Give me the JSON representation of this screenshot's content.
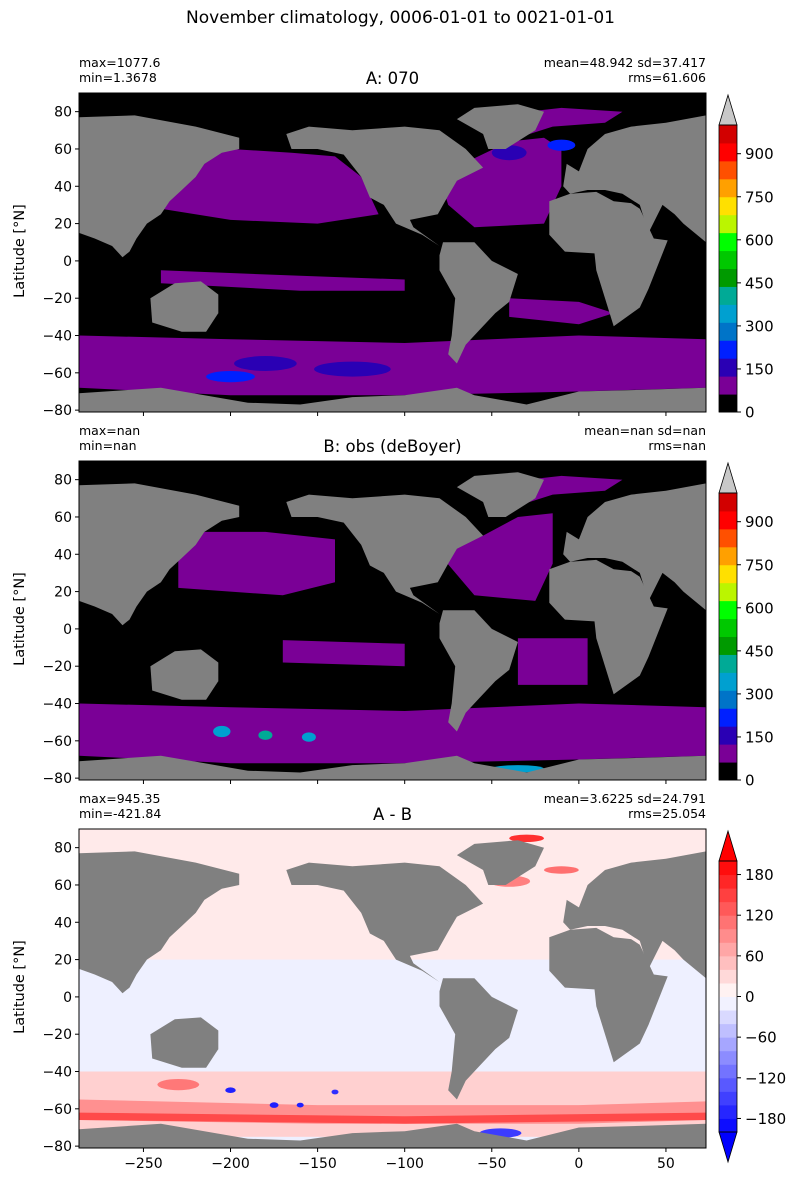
{
  "suptitle": "November climatology, 0006-01-01 to 0021-01-01",
  "colors": {
    "land": "#808080",
    "background": "#000000",
    "seq": [
      "#000000",
      "#7a0096",
      "#2a00b4",
      "#0020ff",
      "#0074c8",
      "#00a0d0",
      "#00aa96",
      "#009a00",
      "#00c800",
      "#00ff00",
      "#bbf500",
      "#ffe000",
      "#ffa000",
      "#ff5000",
      "#ff0000",
      "#d20000"
    ],
    "extend_top": "#c8c8c8"
  },
  "panels": [
    {
      "title": "A: 070",
      "stats_left": [
        "max=1077.6",
        "min=1.3678"
      ],
      "stats_right": [
        "mean=48.942 sd=37.417",
        "rms=61.606"
      ],
      "ylabel": "Latitude [°N]",
      "cbar_ticks": [
        "0",
        "150",
        "300",
        "450",
        "600",
        "750",
        "900"
      ]
    },
    {
      "title": "B: obs (deBoyer)",
      "stats_left": [
        "max=nan",
        "min=nan"
      ],
      "stats_right": [
        "mean=nan sd=nan",
        "rms=nan"
      ],
      "ylabel": "Latitude [°N]",
      "cbar_ticks": [
        "0",
        "150",
        "300",
        "450",
        "600",
        "750",
        "900"
      ]
    },
    {
      "title": "A - B",
      "stats_left": [
        "max=945.35",
        "min=-421.84"
      ],
      "stats_right": [
        "mean=3.6225 sd=24.791",
        "rms=25.054"
      ],
      "ylabel": "Latitude [°N]",
      "cbar_ticks": [
        "−180",
        "−120",
        "−60",
        "0",
        "60",
        "120",
        "180"
      ]
    }
  ],
  "chart_data": [
    {
      "type": "heatmap",
      "title": "A: 070",
      "xlabel": "",
      "ylabel": "Latitude [°N]",
      "xlim": [
        -287,
        73
      ],
      "ylim": [
        -81,
        90
      ],
      "x_ticks": [
        -250,
        -200,
        -150,
        -100,
        -50,
        0,
        50
      ],
      "y_ticks": [
        -80,
        -60,
        -40,
        -20,
        0,
        20,
        40,
        60,
        80
      ],
      "y_tick_labels": [
        "−80",
        "−60",
        "−40",
        "−20",
        "0",
        "20",
        "40",
        "60",
        "80"
      ],
      "colorbar": {
        "min": 0,
        "max": 1000,
        "step": 62.5,
        "ticks": [
          0,
          150,
          300,
          450,
          600,
          750,
          900
        ],
        "extend": "max"
      },
      "stats": {
        "max": 1077.6,
        "min": 1.3678,
        "mean": 48.942,
        "sd": 37.417,
        "rms": 61.606
      }
    },
    {
      "type": "heatmap",
      "title": "B: obs (deBoyer)",
      "xlabel": "",
      "ylabel": "Latitude [°N]",
      "xlim": [
        -287,
        73
      ],
      "ylim": [
        -81,
        90
      ],
      "x_ticks": [
        -250,
        -200,
        -150,
        -100,
        -50,
        0,
        50
      ],
      "y_ticks": [
        -80,
        -60,
        -40,
        -20,
        0,
        20,
        40,
        60,
        80
      ],
      "y_tick_labels": [
        "−80",
        "−60",
        "−40",
        "−20",
        "0",
        "20",
        "40",
        "60",
        "80"
      ],
      "colorbar": {
        "min": 0,
        "max": 1000,
        "step": 62.5,
        "ticks": [
          0,
          150,
          300,
          450,
          600,
          750,
          900
        ],
        "extend": "max"
      },
      "stats": {
        "max": "nan",
        "min": "nan",
        "mean": "nan",
        "sd": "nan",
        "rms": "nan"
      }
    },
    {
      "type": "heatmap",
      "title": "A - B",
      "xlabel": "",
      "ylabel": "Latitude [°N]",
      "xlim": [
        -287,
        73
      ],
      "ylim": [
        -81,
        90
      ],
      "x_ticks": [
        -250,
        -200,
        -150,
        -100,
        -50,
        0,
        50
      ],
      "x_tick_labels": [
        "−250",
        "−200",
        "−150",
        "−100",
        "−50",
        "0",
        "50"
      ],
      "y_ticks": [
        -80,
        -60,
        -40,
        -20,
        0,
        20,
        40,
        60,
        80
      ],
      "y_tick_labels": [
        "−80",
        "−60",
        "−40",
        "−20",
        "0",
        "20",
        "40",
        "60",
        "80"
      ],
      "colorbar": {
        "min": -200,
        "max": 200,
        "step": 20,
        "ticks": [
          -180,
          -120,
          -60,
          0,
          60,
          120,
          180
        ],
        "extend": "both"
      },
      "stats": {
        "max": 945.35,
        "min": -421.84,
        "mean": 3.6225,
        "sd": 24.791,
        "rms": 25.054
      }
    }
  ]
}
